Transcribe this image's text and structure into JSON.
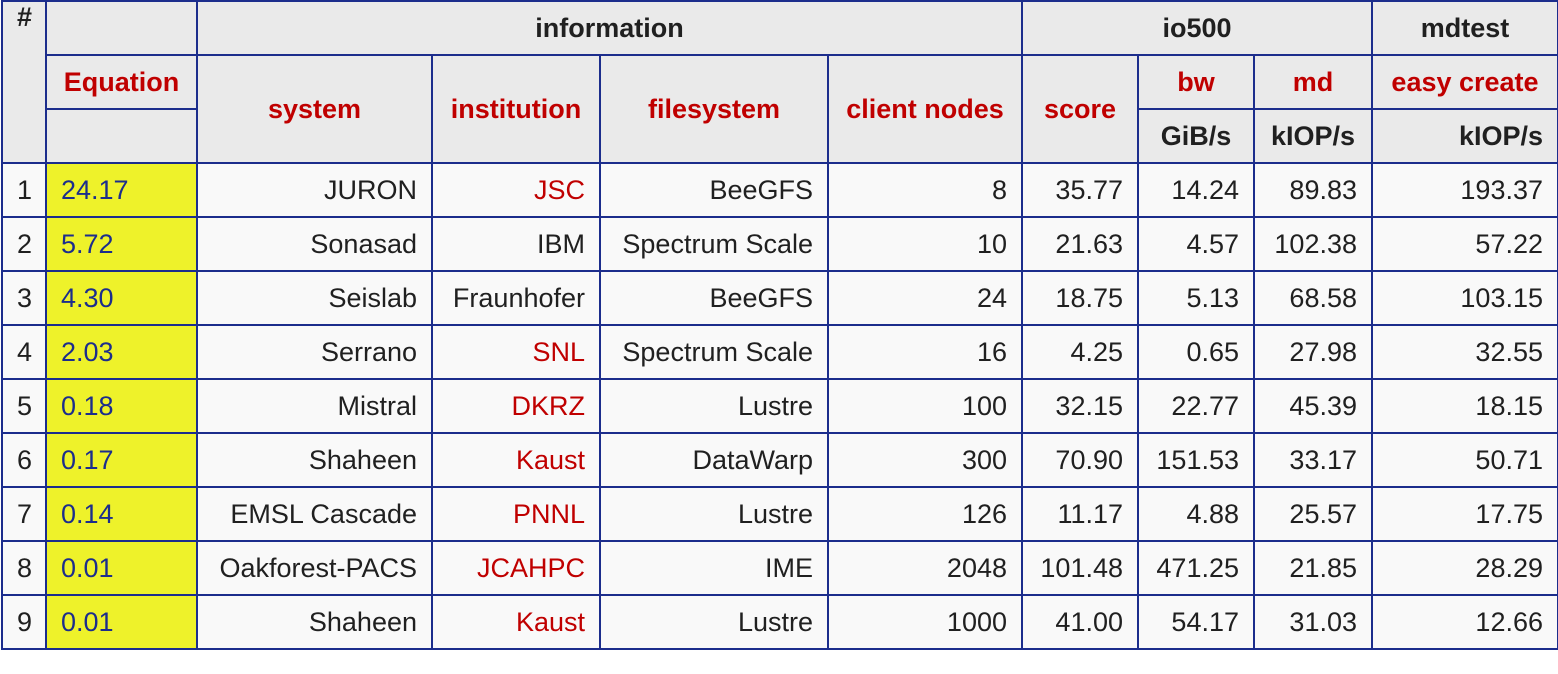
{
  "header": {
    "hash": "#",
    "groups": {
      "information": "information",
      "io500": "io500",
      "mdtest": "mdtest"
    },
    "columns": {
      "equation": "Equation",
      "system": "system",
      "institution": "institution",
      "filesystem": "filesystem",
      "client_nodes": "client nodes",
      "score": "score",
      "bw": "bw",
      "md": "md",
      "easy_create": "easy create"
    },
    "units": {
      "bw": "GiB/s",
      "md": "kIOP/s",
      "easy_create": "kIOP/s"
    }
  },
  "rows": [
    {
      "rank": "1",
      "equation": "24.17",
      "system": "JURON",
      "institution": "JSC",
      "institution_link": true,
      "filesystem": "BeeGFS",
      "client_nodes": "8",
      "score": "35.77",
      "bw": "14.24",
      "md": "89.83",
      "easy_create": "193.37"
    },
    {
      "rank": "2",
      "equation": "5.72",
      "system": "Sonasad",
      "institution": "IBM",
      "institution_link": false,
      "filesystem": "Spectrum Scale",
      "client_nodes": "10",
      "score": "21.63",
      "bw": "4.57",
      "md": "102.38",
      "easy_create": "57.22"
    },
    {
      "rank": "3",
      "equation": "4.30",
      "system": "Seislab",
      "institution": "Fraunhofer",
      "institution_link": false,
      "filesystem": "BeeGFS",
      "client_nodes": "24",
      "score": "18.75",
      "bw": "5.13",
      "md": "68.58",
      "easy_create": "103.15"
    },
    {
      "rank": "4",
      "equation": "2.03",
      "system": "Serrano",
      "institution": "SNL",
      "institution_link": true,
      "filesystem": "Spectrum Scale",
      "client_nodes": "16",
      "score": "4.25",
      "bw": "0.65",
      "md": "27.98",
      "easy_create": "32.55"
    },
    {
      "rank": "5",
      "equation": "0.18",
      "system": "Mistral",
      "institution": "DKRZ",
      "institution_link": true,
      "filesystem": "Lustre",
      "client_nodes": "100",
      "score": "32.15",
      "bw": "22.77",
      "md": "45.39",
      "easy_create": "18.15"
    },
    {
      "rank": "6",
      "equation": "0.17",
      "system": "Shaheen",
      "institution": "Kaust",
      "institution_link": true,
      "filesystem": "DataWarp",
      "client_nodes": "300",
      "score": "70.90",
      "bw": "151.53",
      "md": "33.17",
      "easy_create": "50.71"
    },
    {
      "rank": "7",
      "equation": "0.14",
      "system": "EMSL Cascade",
      "institution": "PNNL",
      "institution_link": true,
      "filesystem": "Lustre",
      "client_nodes": "126",
      "score": "11.17",
      "bw": "4.88",
      "md": "25.57",
      "easy_create": "17.75"
    },
    {
      "rank": "8",
      "equation": "0.01",
      "system": "Oakforest-PACS",
      "institution": "JCAHPC",
      "institution_link": true,
      "filesystem": "IME",
      "client_nodes": "2048",
      "score": "101.48",
      "bw": "471.25",
      "md": "21.85",
      "easy_create": "28.29"
    },
    {
      "rank": "9",
      "equation": "0.01",
      "system": "Shaheen",
      "institution": "Kaust",
      "institution_link": true,
      "filesystem": "Lustre",
      "client_nodes": "1000",
      "score": "41.00",
      "bw": "54.17",
      "md": "31.03",
      "easy_create": "12.66"
    }
  ],
  "colors": {
    "border": "#1c2d8c",
    "header_bg": "#eaeaea",
    "header_text": "#c00000",
    "link": "#c00000",
    "equation_bg": "#eef22a",
    "equation_text": "#1c2d8c"
  }
}
